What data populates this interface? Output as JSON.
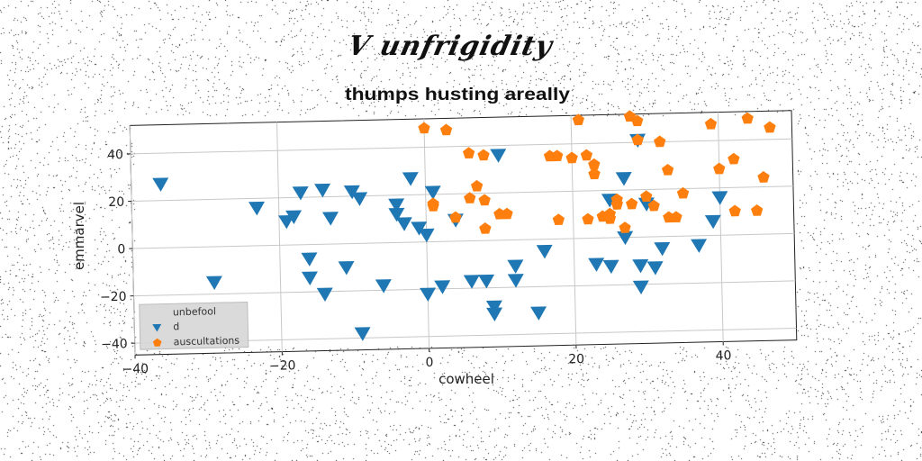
{
  "figure": {
    "suptitle": "V unfrigidity",
    "background": "#ffffff",
    "noise_color": "#222222"
  },
  "chart_data": {
    "type": "scatter",
    "title": "thumps husting areally",
    "xlabel": "cowheel",
    "ylabel": "emmarvel",
    "xlim": [
      -40,
      50
    ],
    "ylim": [
      -45,
      52
    ],
    "xticks": [
      -40,
      -20,
      0,
      20,
      40
    ],
    "yticks": [
      -40,
      -20,
      0,
      20,
      40
    ],
    "grid": true,
    "legend": {
      "title": "unbefool",
      "position": "lower-left"
    },
    "series": [
      {
        "name": "d",
        "marker": "triangle-down",
        "color": "#1f77b4",
        "points": [
          [
            -36,
            27
          ],
          [
            -29,
            -15
          ],
          [
            -23,
            16
          ],
          [
            -19,
            10
          ],
          [
            -18,
            12
          ],
          [
            -17,
            22
          ],
          [
            -16,
            -6
          ],
          [
            -16,
            -14
          ],
          [
            -14,
            23
          ],
          [
            -14,
            -21
          ],
          [
            -13,
            11
          ],
          [
            -11,
            -10
          ],
          [
            -10,
            22
          ],
          [
            -9,
            19
          ],
          [
            -9,
            -38
          ],
          [
            -6,
            -18
          ],
          [
            -4,
            16
          ],
          [
            -4,
            12
          ],
          [
            -3,
            8
          ],
          [
            -2,
            27
          ],
          [
            -1,
            6
          ],
          [
            0,
            3
          ],
          [
            0,
            -22
          ],
          [
            1,
            21
          ],
          [
            2,
            -19
          ],
          [
            4,
            9
          ],
          [
            6,
            -17
          ],
          [
            8,
            -17
          ],
          [
            9,
            -28
          ],
          [
            9,
            -31
          ],
          [
            10,
            36
          ],
          [
            12,
            -11
          ],
          [
            12,
            -17
          ],
          [
            15,
            -31
          ],
          [
            16,
            -5
          ],
          [
            23,
            -11
          ],
          [
            25,
            -12
          ],
          [
            25,
            16
          ],
          [
            27,
            25
          ],
          [
            27,
            0
          ],
          [
            29,
            41
          ],
          [
            29,
            -12
          ],
          [
            29,
            -21
          ],
          [
            30,
            14
          ],
          [
            31,
            -13
          ],
          [
            32,
            -5
          ],
          [
            37,
            -4
          ],
          [
            39,
            6
          ],
          [
            40,
            16
          ]
        ]
      },
      {
        "name": "auscultations",
        "marker": "pentagon",
        "color": "#ff7f0e",
        "points": [
          [
            0,
            48
          ],
          [
            1,
            16
          ],
          [
            1,
            15
          ],
          [
            3,
            47
          ],
          [
            4,
            10
          ],
          [
            6,
            18
          ],
          [
            6,
            37
          ],
          [
            7,
            23
          ],
          [
            8,
            36
          ],
          [
            8,
            17
          ],
          [
            8,
            5
          ],
          [
            10,
            11
          ],
          [
            11,
            11
          ],
          [
            17,
            35
          ],
          [
            18,
            35
          ],
          [
            18,
            8
          ],
          [
            20,
            34
          ],
          [
            21,
            50
          ],
          [
            22,
            8
          ],
          [
            22,
            35
          ],
          [
            23,
            31
          ],
          [
            23,
            27
          ],
          [
            24,
            9
          ],
          [
            25,
            10
          ],
          [
            25,
            8
          ],
          [
            26,
            16
          ],
          [
            26,
            14
          ],
          [
            27,
            4
          ],
          [
            28,
            14
          ],
          [
            28,
            51
          ],
          [
            29,
            49
          ],
          [
            29,
            41
          ],
          [
            30,
            17
          ],
          [
            31,
            13
          ],
          [
            32,
            40
          ],
          [
            33,
            28
          ],
          [
            33,
            8
          ],
          [
            34,
            8
          ],
          [
            35,
            18
          ],
          [
            39,
            47
          ],
          [
            40,
            28
          ],
          [
            42,
            32
          ],
          [
            42,
            10
          ],
          [
            44,
            49
          ],
          [
            45,
            10
          ],
          [
            46,
            24
          ],
          [
            47,
            45
          ]
        ]
      }
    ]
  }
}
